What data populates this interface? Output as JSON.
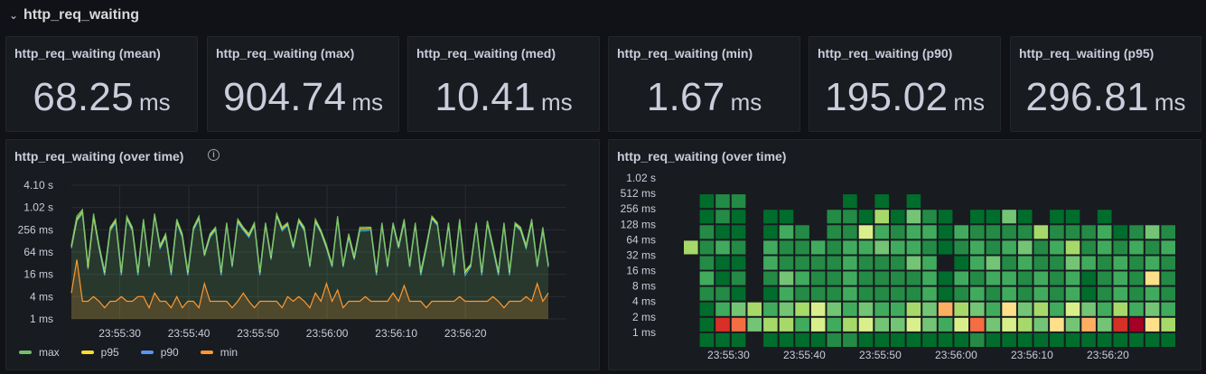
{
  "row": {
    "title": "http_req_waiting"
  },
  "stats": [
    {
      "title": "http_req_waiting (mean)",
      "value": "68.25",
      "unit": "ms"
    },
    {
      "title": "http_req_waiting (max)",
      "value": "904.74",
      "unit": "ms"
    },
    {
      "title": "http_req_waiting (med)",
      "value": "10.41",
      "unit": "ms"
    },
    {
      "title": "http_req_waiting (min)",
      "value": "1.67",
      "unit": "ms"
    },
    {
      "title": "http_req_waiting (p90)",
      "value": "195.02",
      "unit": "ms"
    },
    {
      "title": "http_req_waiting (p95)",
      "value": "296.81",
      "unit": "ms"
    }
  ],
  "timeseries_panel": {
    "title": "http_req_waiting (over time)"
  },
  "heatmap_panel": {
    "title": "http_req_waiting (over time)"
  },
  "colors": {
    "max": "#73bf69",
    "p95": "#fade2a",
    "p90": "#5794f2",
    "min": "#ff9830"
  },
  "chart_data": [
    {
      "type": "line",
      "title": "http_req_waiting (over time)",
      "yscale": "log2",
      "ylim_ms": [
        1,
        4100
      ],
      "y_ticks": [
        "4.10 s",
        "1.02 s",
        "256 ms",
        "64 ms",
        "16 ms",
        "4 ms",
        "1 ms"
      ],
      "x_ticks": [
        "23:55:30",
        "23:55:40",
        "23:55:50",
        "23:56:00",
        "23:56:10",
        "23:56:20"
      ],
      "x_seconds_start": -7,
      "x_seconds_end": 62,
      "legend_position": "bottom-left",
      "series": [
        {
          "name": "max",
          "color": "#73bf69",
          "values": [
            100,
            600,
            900,
            30,
            700,
            100,
            20,
            300,
            500,
            20,
            600,
            300,
            20,
            500,
            30,
            700,
            100,
            200,
            20,
            500,
            200,
            20,
            300,
            600,
            60,
            200,
            300,
            20,
            400,
            30,
            500,
            300,
            200,
            400,
            20,
            400,
            50,
            700,
            300,
            400,
            100,
            500,
            300,
            30,
            500,
            250,
            100,
            30,
            600,
            30,
            200,
            50,
            300,
            300,
            300,
            20,
            400,
            30,
            400,
            100,
            500,
            30,
            400,
            20,
            100,
            600,
            400,
            30,
            400,
            20,
            500,
            20,
            30,
            400,
            20,
            450,
            100,
            20,
            400,
            20,
            400,
            300,
            100,
            500,
            30,
            300,
            30
          ]
        },
        {
          "name": "p95",
          "color": "#fade2a",
          "values": [
            90,
            500,
            800,
            25,
            600,
            90,
            18,
            270,
            450,
            18,
            550,
            270,
            18,
            460,
            28,
            650,
            90,
            180,
            18,
            450,
            180,
            18,
            280,
            550,
            55,
            180,
            280,
            18,
            380,
            28,
            450,
            280,
            180,
            370,
            18,
            370,
            45,
            650,
            270,
            370,
            90,
            460,
            270,
            28,
            450,
            230,
            90,
            28,
            550,
            28,
            180,
            45,
            270,
            270,
            280,
            18,
            370,
            28,
            370,
            90,
            450,
            28,
            370,
            18,
            90,
            550,
            370,
            28,
            370,
            18,
            450,
            18,
            28,
            370,
            18,
            420,
            90,
            18,
            370,
            18,
            370,
            270,
            90,
            450,
            28,
            270,
            28
          ]
        },
        {
          "name": "p90",
          "color": "#5794f2",
          "values": [
            80,
            450,
            700,
            22,
            550,
            80,
            15,
            240,
            400,
            15,
            500,
            240,
            15,
            420,
            25,
            600,
            80,
            160,
            15,
            400,
            160,
            15,
            250,
            500,
            50,
            160,
            250,
            15,
            350,
            25,
            400,
            250,
            160,
            340,
            15,
            340,
            40,
            600,
            240,
            340,
            80,
            420,
            240,
            25,
            400,
            210,
            80,
            25,
            500,
            25,
            160,
            40,
            240,
            240,
            250,
            15,
            340,
            25,
            340,
            80,
            400,
            25,
            340,
            15,
            80,
            500,
            340,
            25,
            340,
            15,
            400,
            15,
            25,
            340,
            15,
            380,
            80,
            15,
            340,
            15,
            340,
            240,
            80,
            400,
            25,
            240,
            25
          ]
        },
        {
          "name": "min",
          "color": "#ff9830",
          "values": [
            5,
            40,
            3,
            3,
            4,
            3,
            2,
            3,
            3,
            4,
            3,
            3,
            4,
            4,
            2,
            5,
            3,
            3,
            2,
            4,
            2,
            3,
            3,
            2,
            9,
            3,
            3,
            3,
            3,
            2,
            3,
            5,
            3,
            2,
            3,
            3,
            3,
            3,
            2,
            4,
            3,
            4,
            3,
            2,
            5,
            3,
            9,
            3,
            6,
            2,
            3,
            3,
            3,
            4,
            3,
            3,
            3,
            3,
            5,
            3,
            8,
            3,
            3,
            3,
            2,
            3,
            3,
            3,
            3,
            3,
            4,
            3,
            3,
            3,
            3,
            3,
            4,
            3,
            2,
            3,
            3,
            3,
            4,
            3,
            9,
            3,
            5
          ]
        }
      ]
    },
    {
      "type": "heatmap",
      "title": "http_req_waiting (over time)",
      "y_ticks": [
        "1.02 s",
        "512 ms",
        "256 ms",
        "128 ms",
        "64 ms",
        "32 ms",
        "16 ms",
        "8 ms",
        "4 ms",
        "2 ms",
        "1 ms"
      ],
      "x_ticks": [
        "23:55:30",
        "23:55:40",
        "23:55:50",
        "23:56:00",
        "23:56:10",
        "23:56:20"
      ],
      "x_seconds_start": -6,
      "x_seconds_end": 59,
      "color_scale": [
        "#006d2c",
        "#238b45",
        "#41ab5d",
        "#74c476",
        "#a6d96a",
        "#d9ef8b",
        "#fee08b",
        "#fdae61",
        "#f46d43",
        "#d73027",
        "#a50026"
      ],
      "columns": 31,
      "rows": 11,
      "intensity": [
        [
          0,
          0,
          0,
          0,
          0,
          0,
          0,
          0,
          0,
          0,
          0,
          0,
          0,
          0,
          0,
          0,
          0,
          0,
          0,
          0,
          0,
          0,
          0,
          0,
          0,
          0,
          0,
          0,
          0,
          0,
          0
        ],
        [
          0,
          1,
          2,
          2,
          0,
          0,
          0,
          0,
          0,
          0,
          1,
          0,
          1,
          0,
          1,
          0,
          0,
          0,
          0,
          0,
          0,
          0,
          0,
          0,
          0,
          0,
          0,
          0,
          0,
          0,
          0
        ],
        [
          0,
          1,
          2,
          1,
          0,
          1,
          1,
          0,
          0,
          2,
          2,
          1,
          5,
          1,
          4,
          2,
          1,
          0,
          1,
          1,
          4,
          1,
          0,
          1,
          1,
          0,
          1,
          0,
          0,
          0,
          0
        ],
        [
          0,
          2,
          1,
          1,
          0,
          1,
          3,
          2,
          0,
          2,
          2,
          6,
          3,
          2,
          3,
          3,
          1,
          3,
          2,
          2,
          2,
          2,
          5,
          2,
          2,
          2,
          3,
          1,
          2,
          4,
          2
        ],
        [
          5,
          2,
          3,
          2,
          0,
          3,
          2,
          2,
          3,
          2,
          3,
          3,
          4,
          3,
          3,
          2,
          1,
          2,
          3,
          2,
          3,
          4,
          2,
          3,
          5,
          2,
          3,
          2,
          3,
          2,
          3
        ],
        [
          0,
          2,
          1,
          1,
          0,
          3,
          2,
          2,
          2,
          2,
          3,
          2,
          2,
          2,
          4,
          3,
          0,
          1,
          3,
          4,
          2,
          3,
          2,
          2,
          4,
          3,
          2,
          3,
          2,
          3,
          2
        ],
        [
          0,
          3,
          1,
          2,
          0,
          2,
          4,
          3,
          2,
          2,
          3,
          2,
          2,
          2,
          2,
          3,
          1,
          3,
          2,
          3,
          3,
          2,
          3,
          2,
          3,
          1,
          2,
          3,
          2,
          7,
          2
        ],
        [
          0,
          2,
          2,
          1,
          0,
          1,
          3,
          2,
          2,
          2,
          3,
          2,
          2,
          2,
          2,
          3,
          1,
          2,
          3,
          2,
          3,
          2,
          3,
          2,
          3,
          1,
          2,
          3,
          2,
          3,
          2
        ],
        [
          0,
          1,
          3,
          4,
          5,
          3,
          4,
          5,
          6,
          4,
          3,
          4,
          3,
          3,
          5,
          4,
          8,
          5,
          4,
          3,
          7,
          4,
          5,
          3,
          6,
          4,
          3,
          5,
          3,
          4,
          3
        ],
        [
          0,
          1,
          10,
          9,
          4,
          5,
          5,
          3,
          6,
          3,
          5,
          6,
          4,
          4,
          6,
          4,
          3,
          6,
          9,
          4,
          6,
          5,
          4,
          7,
          4,
          8,
          4,
          10,
          11,
          7,
          5
        ],
        [
          0,
          1,
          1,
          1,
          0,
          1,
          1,
          1,
          1,
          2,
          2,
          1,
          1,
          1,
          1,
          1,
          1,
          1,
          2,
          1,
          1,
          1,
          1,
          1,
          1,
          1,
          1,
          1,
          1,
          1,
          1
        ]
      ]
    }
  ]
}
